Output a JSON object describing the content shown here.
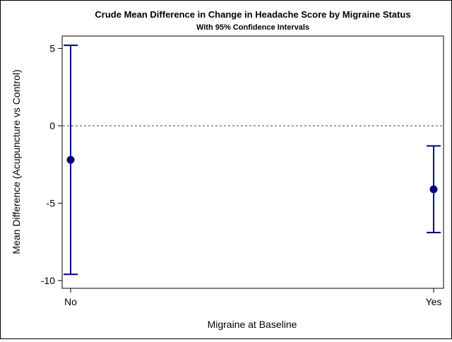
{
  "chart_data": {
    "type": "scatter",
    "title": "Crude Mean Difference in Change in Headache Score by Migraine Status",
    "subtitle": "With 95% Confidence Intervals",
    "xlabel": "Migraine at Baseline",
    "ylabel": "Mean Difference (Acupuncture vs Control)",
    "categories": [
      "No",
      "Yes"
    ],
    "values": [
      -2.2,
      -4.1
    ],
    "lower": [
      -9.6,
      -6.9
    ],
    "upper": [
      5.2,
      -1.3
    ],
    "ylim": [
      -10.5,
      5.8
    ],
    "yticks": [
      5,
      0,
      -5,
      -10
    ],
    "ytick_labels": [
      "5",
      "0",
      "-5",
      "-10"
    ],
    "reference_line": 0,
    "grid": false,
    "colors": {
      "marker": "#000080",
      "errorbar": "#000080",
      "refline": "#808080"
    }
  }
}
